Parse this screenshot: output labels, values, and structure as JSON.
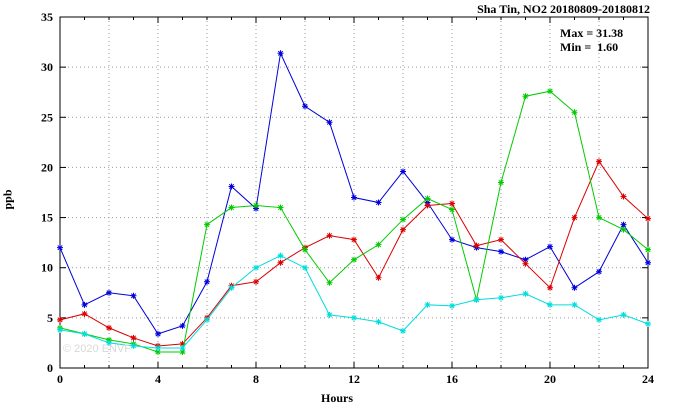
{
  "title": "Sha Tin, NO2 20180809-20180812",
  "stats_box": {
    "max_label": "Max = 31.38",
    "min_label": "Min =  1.60"
  },
  "watermark": "© 2020 ENVF",
  "chart_data": {
    "type": "line",
    "title": "Sha Tin, NO2 20180809-20180812",
    "xlabel": "Hours",
    "ylabel": "ppb",
    "xlim": [
      0,
      24
    ],
    "ylim": [
      0,
      35
    ],
    "x_major_ticks": [
      0,
      4,
      8,
      12,
      16,
      20,
      24
    ],
    "x_grid_step": 2,
    "y_ticks": [
      0,
      5,
      10,
      15,
      20,
      25,
      30,
      35
    ],
    "grid": true,
    "legend": "none",
    "stats": {
      "max": 31.38,
      "min": 1.6
    },
    "x": [
      0,
      1,
      2,
      3,
      4,
      5,
      6,
      7,
      8,
      9,
      10,
      11,
      12,
      13,
      14,
      15,
      16,
      17,
      18,
      19,
      20,
      21,
      22,
      23,
      24
    ],
    "series": [
      {
        "name": "blue",
        "color": "#0000dd",
        "values": [
          12.0,
          6.3,
          7.5,
          7.2,
          3.4,
          4.2,
          8.6,
          18.1,
          15.9,
          31.38,
          26.1,
          24.5,
          17.0,
          16.5,
          19.6,
          16.5,
          12.8,
          12.0,
          11.6,
          10.8,
          12.1,
          8.0,
          9.6,
          14.3,
          10.5
        ]
      },
      {
        "name": "red",
        "color": "#dd0000",
        "values": [
          4.8,
          5.4,
          4.0,
          3.0,
          2.2,
          2.4,
          5.0,
          8.2,
          8.6,
          10.5,
          12.0,
          13.2,
          12.8,
          9.0,
          13.8,
          16.2,
          16.4,
          12.2,
          12.8,
          10.4,
          8.0,
          15.0,
          20.6,
          17.1,
          14.9
        ]
      },
      {
        "name": "green",
        "color": "#00cc00",
        "values": [
          4.0,
          3.4,
          2.8,
          2.4,
          1.6,
          1.6,
          14.3,
          16.0,
          16.2,
          16.0,
          11.8,
          8.5,
          10.8,
          12.3,
          14.8,
          16.9,
          15.8,
          6.8,
          18.5,
          27.1,
          27.6,
          25.5,
          15.0,
          13.8,
          11.8
        ]
      },
      {
        "name": "cyan",
        "color": "#00dddd",
        "values": [
          3.8,
          3.4,
          2.5,
          2.2,
          2.0,
          2.0,
          4.8,
          8.0,
          10.0,
          11.2,
          10.0,
          5.3,
          5.0,
          4.6,
          3.7,
          6.3,
          6.2,
          6.8,
          7.0,
          7.4,
          6.3,
          6.3,
          4.8,
          5.3,
          4.4
        ]
      }
    ]
  }
}
